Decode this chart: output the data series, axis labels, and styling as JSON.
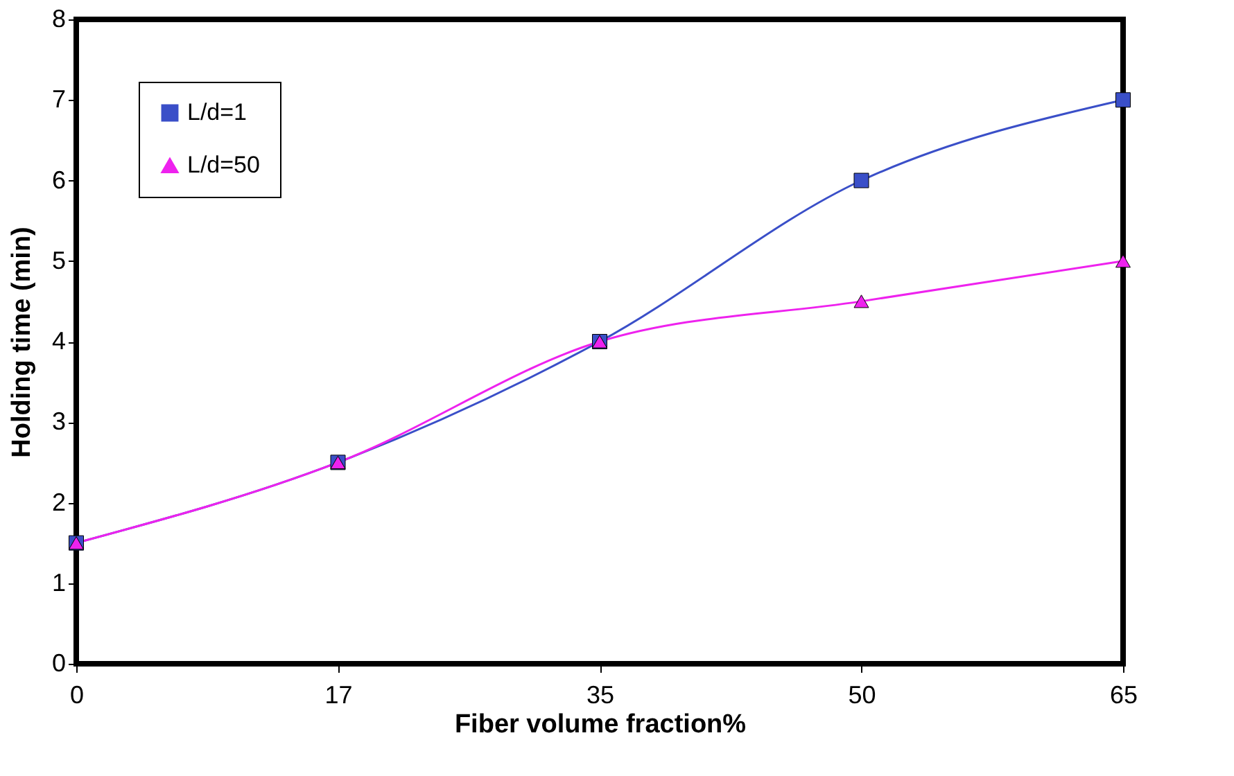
{
  "chart_data": {
    "type": "line",
    "xlabel": "Fiber volume fraction%",
    "ylabel": "Holding time (min)",
    "categories": [
      "0",
      "17",
      "35",
      "50",
      "65"
    ],
    "series": [
      {
        "name": "L/d=1",
        "color": "#3a4fc8",
        "marker": "square",
        "values": [
          1.5,
          2.5,
          4,
          6,
          7
        ]
      },
      {
        "name": "L/d=50",
        "color": "#ee22ee",
        "marker": "triangle",
        "values": [
          1.5,
          2.5,
          4,
          4.5,
          5
        ]
      }
    ],
    "ylim": [
      0,
      8
    ],
    "yticks": [
      0,
      1,
      2,
      3,
      4,
      5,
      6,
      7,
      8
    ],
    "grid": false,
    "legend": "top left",
    "line_style": "solid"
  }
}
